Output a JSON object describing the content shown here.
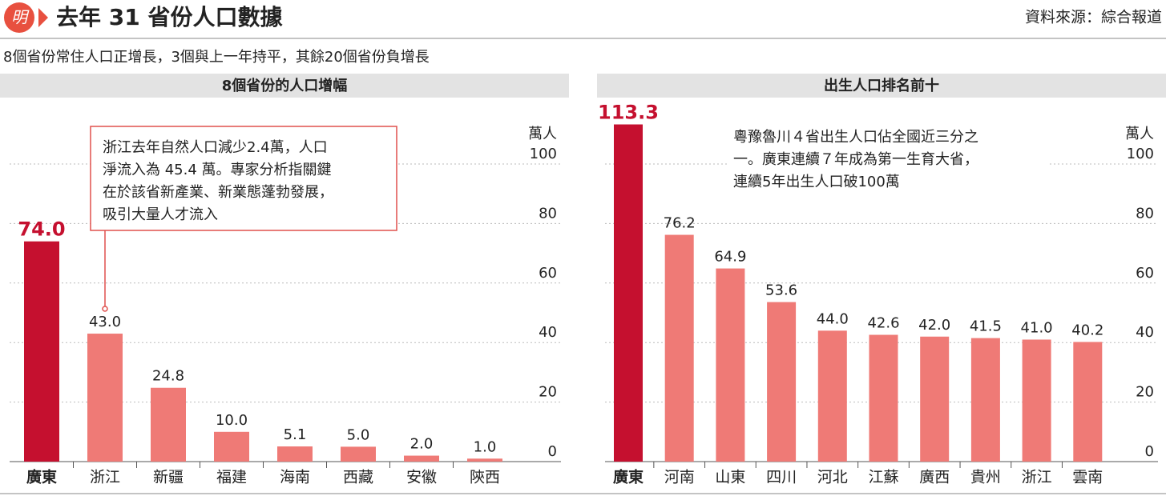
{
  "header": {
    "logo": "明",
    "title": "去年 31 省份人口數據",
    "source": "資料來源：綜合報道",
    "subtitle": "8個省份常住人口正增長，3個與上一年持平，其餘20個省份負增長"
  },
  "chart_data": [
    {
      "type": "bar",
      "title": "8個省份的人口增幅",
      "y_label": "萬人",
      "categories": [
        "廣東",
        "浙江",
        "新疆",
        "福建",
        "海南",
        "西藏",
        "安徽",
        "陝西"
      ],
      "values": [
        74.0,
        43.0,
        24.8,
        10.0,
        5.1,
        5.0,
        2.0,
        1.0
      ],
      "value_labels": [
        "74.0",
        "43.0",
        "24.8",
        "10.0",
        "5.1",
        "5.0",
        "2.0",
        "1.0"
      ],
      "colors": [
        "#c5102f",
        "#ef7a76",
        "#ef7a76",
        "#ef7a76",
        "#ef7a76",
        "#ef7a76",
        "#ef7a76",
        "#ef7a76"
      ],
      "ylim": [
        0,
        100
      ],
      "yticks": [
        0,
        20,
        40,
        60,
        80,
        100
      ],
      "grid": true,
      "annotation": [
        "浙江去年自然人口減少2.4萬，人口",
        "淨流入為 45.4 萬。專家分析指關鍵",
        "在於該省新產業、新業態蓬勃發展，",
        "吸引大量人才流入"
      ]
    },
    {
      "type": "bar",
      "title": "出生人口排名前十",
      "y_label": "萬人",
      "categories": [
        "廣東",
        "河南",
        "山東",
        "四川",
        "河北",
        "江蘇",
        "廣西",
        "貴州",
        "浙江",
        "雲南"
      ],
      "values": [
        113.3,
        76.2,
        64.9,
        53.6,
        44.0,
        42.6,
        42.0,
        41.5,
        41.0,
        40.2
      ],
      "value_labels": [
        "113.3",
        "76.2",
        "64.9",
        "53.6",
        "44.0",
        "42.6",
        "42.0",
        "41.5",
        "41.0",
        "40.2"
      ],
      "colors": [
        "#c5102f",
        "#ef7a76",
        "#ef7a76",
        "#ef7a76",
        "#ef7a76",
        "#ef7a76",
        "#ef7a76",
        "#ef7a76",
        "#ef7a76",
        "#ef7a76"
      ],
      "ylim": [
        0,
        100
      ],
      "yticks": [
        0,
        20,
        40,
        60,
        80,
        100
      ],
      "grid": true,
      "annotation": [
        "粵豫魯川４省出生人口佔全國近三分之",
        "一。廣東連續７年成為第一生育大省，",
        "連續5年出生人口破100萬"
      ]
    }
  ]
}
